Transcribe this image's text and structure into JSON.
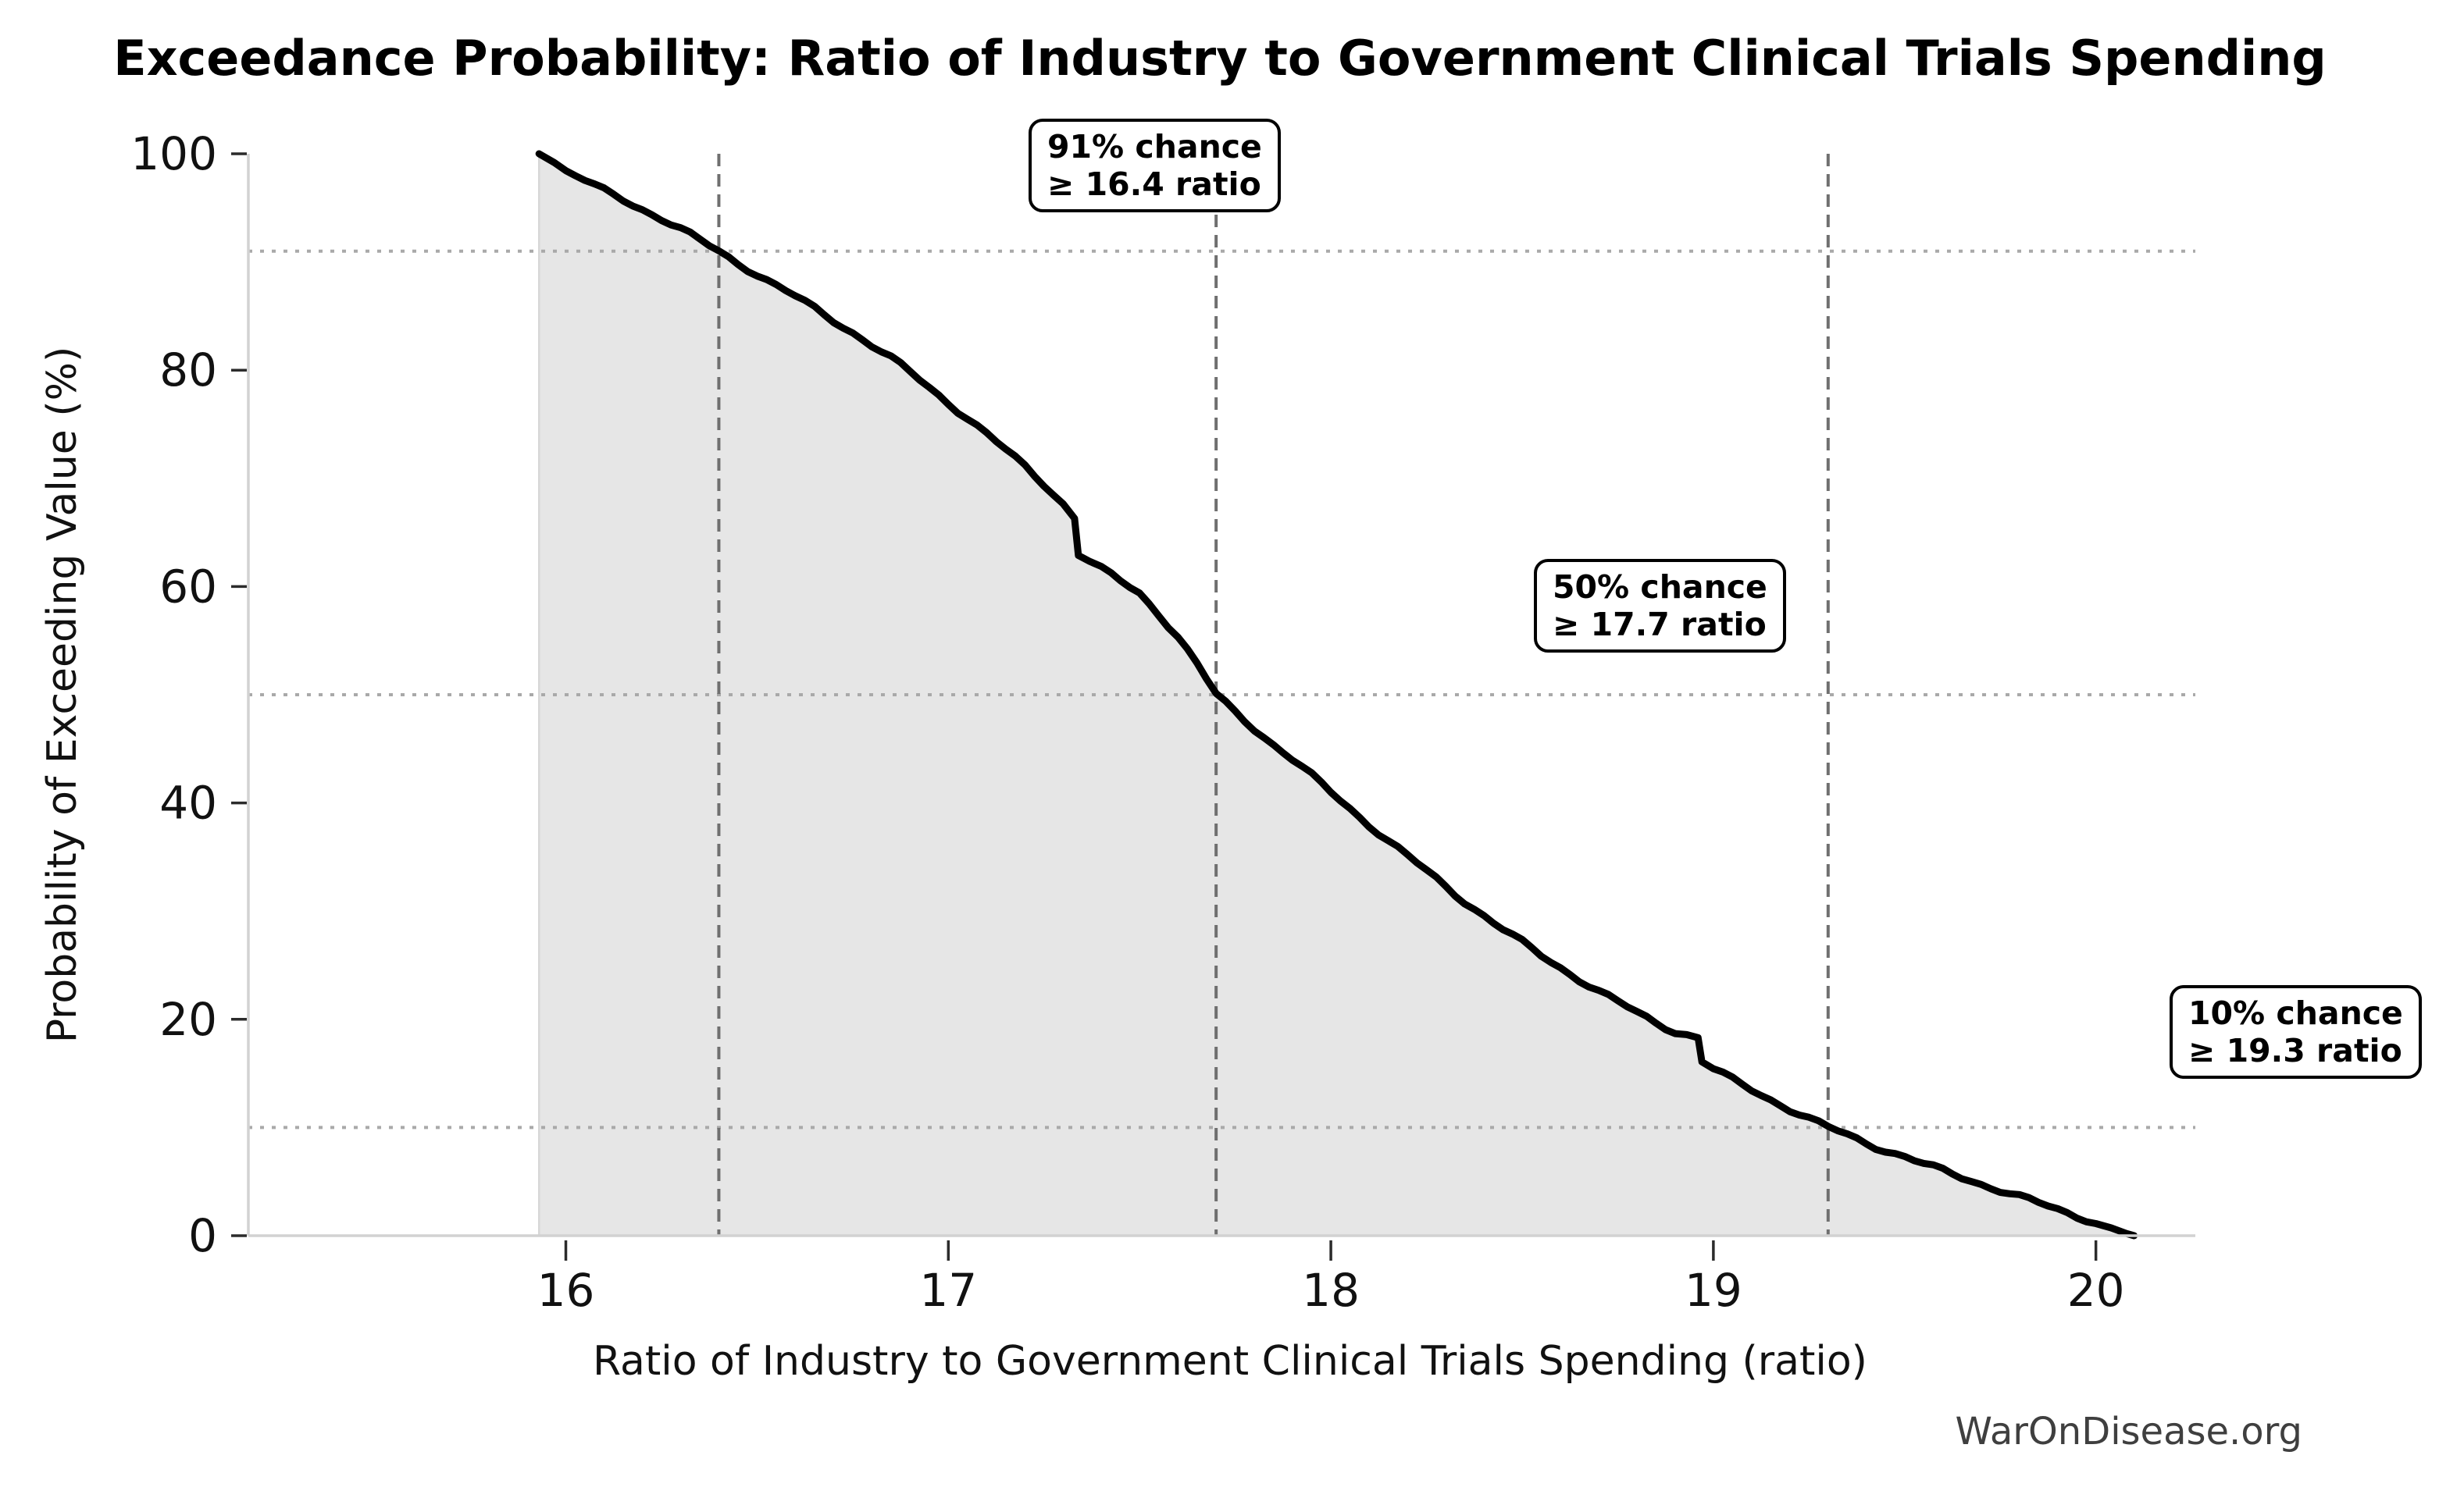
{
  "watermark": "WarOnDisease.org",
  "chart_data": {
    "type": "area",
    "title": "Exceedance Probability: Ratio of Industry to Government Clinical Trials Spending",
    "xlabel": "Ratio of Industry to Government Clinical Trials Spending (ratio)",
    "ylabel": "Probability of Exceeding Value (%)",
    "xlim": [
      15.17,
      20.26
    ],
    "ylim": [
      0,
      100
    ],
    "xticks": [
      16,
      17,
      18,
      19,
      20
    ],
    "yticks": [
      0,
      20,
      40,
      60,
      80,
      100
    ],
    "grid": false,
    "legend": "none",
    "percentile_markers": [
      {
        "probability_pct": 91,
        "ratio": 16.4,
        "label_line1": "91% chance",
        "label_line2": "≥ 16.4 ratio"
      },
      {
        "probability_pct": 50,
        "ratio": 17.7,
        "label_line1": "50% chance",
        "label_line2": "≥ 17.7 ratio"
      },
      {
        "probability_pct": 10,
        "ratio": 19.3,
        "label_line1": "10% chance",
        "label_line2": "≥ 19.3 ratio"
      }
    ],
    "series": [
      {
        "name": "Exceedance probability curve",
        "description": "Empirical complementary CDF; black stepped line with light gray area filled to 0%",
        "points": [
          [
            15.93,
            100
          ],
          [
            15.97,
            99.2
          ],
          [
            16.0,
            98.4
          ],
          [
            16.05,
            97.5
          ],
          [
            16.1,
            96.6
          ],
          [
            16.15,
            95.8
          ],
          [
            16.2,
            94.9
          ],
          [
            16.25,
            94.0
          ],
          [
            16.3,
            93.0
          ],
          [
            16.35,
            92.0
          ],
          [
            16.4,
            91.0
          ],
          [
            16.45,
            89.9
          ],
          [
            16.5,
            88.9
          ],
          [
            16.55,
            87.8
          ],
          [
            16.6,
            86.8
          ],
          [
            16.65,
            85.7
          ],
          [
            16.7,
            84.6
          ],
          [
            16.75,
            83.5
          ],
          [
            16.8,
            82.3
          ],
          [
            16.85,
            81.1
          ],
          [
            16.9,
            79.8
          ],
          [
            16.95,
            78.4
          ],
          [
            17.0,
            77.0
          ],
          [
            17.05,
            75.6
          ],
          [
            17.1,
            74.1
          ],
          [
            17.15,
            72.6
          ],
          [
            17.2,
            71.1
          ],
          [
            17.25,
            69.5
          ],
          [
            17.3,
            67.7
          ],
          [
            17.33,
            66.3
          ],
          [
            17.34,
            63.0
          ],
          [
            17.4,
            61.6
          ],
          [
            17.45,
            60.5
          ],
          [
            17.5,
            59.4
          ],
          [
            17.55,
            57.5
          ],
          [
            17.6,
            55.4
          ],
          [
            17.65,
            52.8
          ],
          [
            17.7,
            50.0
          ],
          [
            17.75,
            48.4
          ],
          [
            17.8,
            46.9
          ],
          [
            17.85,
            45.4
          ],
          [
            17.9,
            44.0
          ],
          [
            17.95,
            42.5
          ],
          [
            18.0,
            41.0
          ],
          [
            18.05,
            39.5
          ],
          [
            18.1,
            38.0
          ],
          [
            18.15,
            36.5
          ],
          [
            18.2,
            35.1
          ],
          [
            18.25,
            33.7
          ],
          [
            18.3,
            32.3
          ],
          [
            18.35,
            30.9
          ],
          [
            18.4,
            29.6
          ],
          [
            18.45,
            28.3
          ],
          [
            18.5,
            27.1
          ],
          [
            18.55,
            25.9
          ],
          [
            18.6,
            24.8
          ],
          [
            18.65,
            23.7
          ],
          [
            18.7,
            22.6
          ],
          [
            18.75,
            21.6
          ],
          [
            18.8,
            20.6
          ],
          [
            18.85,
            19.7
          ],
          [
            18.9,
            18.9
          ],
          [
            18.96,
            18.3
          ],
          [
            18.97,
            16.1
          ],
          [
            19.0,
            15.4
          ],
          [
            19.05,
            14.4
          ],
          [
            19.1,
            13.5
          ],
          [
            19.15,
            12.6
          ],
          [
            19.2,
            11.7
          ],
          [
            19.25,
            10.8
          ],
          [
            19.3,
            10.0
          ],
          [
            19.35,
            9.3
          ],
          [
            19.4,
            8.6
          ],
          [
            19.45,
            7.9
          ],
          [
            19.5,
            7.3
          ],
          [
            19.55,
            6.6
          ],
          [
            19.6,
            6.0
          ],
          [
            19.65,
            5.4
          ],
          [
            19.7,
            4.8
          ],
          [
            19.75,
            4.2
          ],
          [
            19.8,
            3.6
          ],
          [
            19.85,
            3.0
          ],
          [
            19.9,
            2.4
          ],
          [
            19.95,
            1.8
          ],
          [
            20.0,
            1.2
          ],
          [
            20.04,
            0.7
          ],
          [
            20.08,
            0.2
          ],
          [
            20.1,
            0.0
          ]
        ]
      }
    ],
    "colors": {
      "curve": "#000000",
      "fill": "#e6e6e6",
      "fill_left_edge": "#d7d7d7",
      "dashed_reference": "#6f6f6f",
      "dotted_reference": "#a9a9a9",
      "spine": "#d2d2d2",
      "tick_mark": "#2b2b2b",
      "tick_label": "#111111",
      "watermark": "#3f3f3f",
      "background": "#ffffff"
    }
  }
}
